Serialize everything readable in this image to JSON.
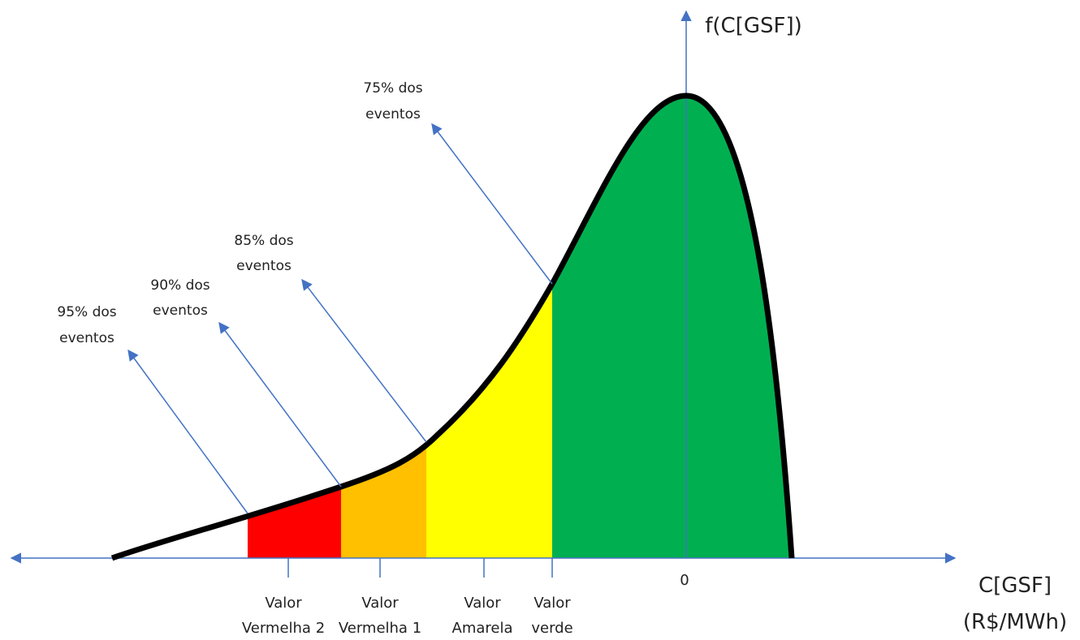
{
  "axes": {
    "y_label": "f(C[GSF])",
    "x_label": [
      "C[GSF]",
      "(R$/MWh)"
    ]
  },
  "zero_label": "0",
  "value_labels": [
    [
      "Valor",
      "Vermelha 2"
    ],
    [
      "Valor",
      "Vermelha 1"
    ],
    [
      "Valor",
      "Amarela"
    ],
    [
      "Valor",
      "verde"
    ]
  ],
  "annotations": [
    [
      "95% dos",
      "eventos"
    ],
    [
      "90% dos",
      "eventos"
    ],
    [
      "85% dos",
      "eventos"
    ],
    [
      "75% dos",
      "eventos"
    ]
  ]
}
